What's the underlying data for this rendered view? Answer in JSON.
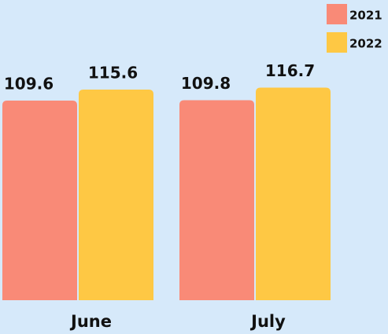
{
  "chart_data": {
    "type": "bar",
    "categories": [
      "June",
      "July"
    ],
    "series": [
      {
        "name": "2021",
        "color": "#f98a77",
        "values": [
          109.6,
          109.8
        ]
      },
      {
        "name": "2022",
        "color": "#fec844",
        "values": [
          115.6,
          116.7
        ]
      }
    ],
    "ylim": [
      0,
      140
    ],
    "grid": false,
    "legend": "top-right"
  }
}
